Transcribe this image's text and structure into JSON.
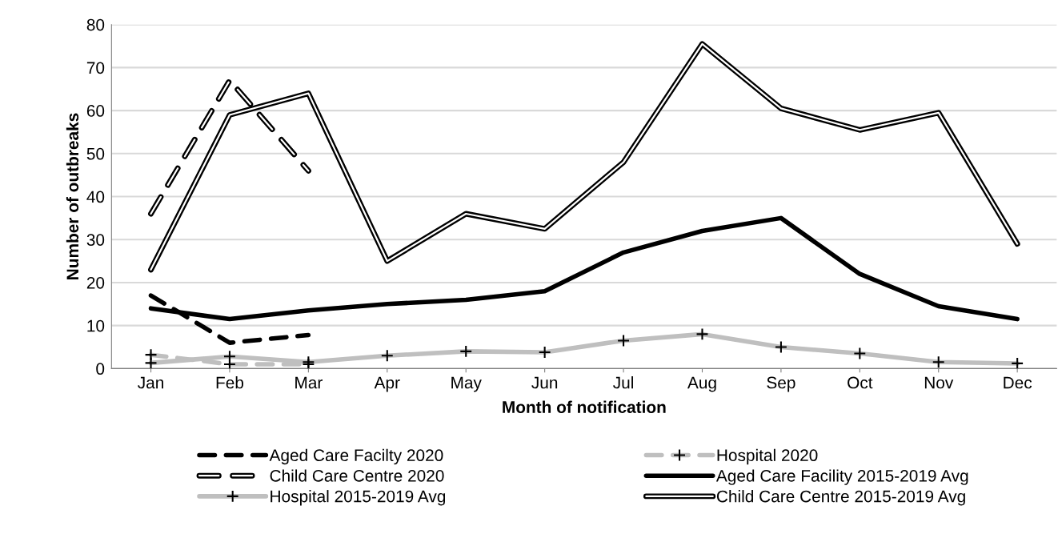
{
  "chart_data": {
    "type": "line",
    "xlabel": "Month of notification",
    "ylabel": "Number of outbreaks",
    "categories": [
      "Jan",
      "Feb",
      "Mar",
      "Apr",
      "May",
      "Jun",
      "Jul",
      "Aug",
      "Sep",
      "Oct",
      "Nov",
      "Dec"
    ],
    "ylim": [
      0,
      80
    ],
    "yticks": [
      0,
      10,
      20,
      30,
      40,
      50,
      60,
      70,
      80
    ],
    "grid": "y",
    "legend": "bottom",
    "series": [
      {
        "name": "Aged Care Facilty 2020",
        "color": "#000000",
        "line_style": "dashed",
        "marker": "none",
        "values": [
          17,
          6,
          7.8,
          null,
          null,
          null,
          null,
          null,
          null,
          null,
          null,
          null
        ]
      },
      {
        "name": "Hospital 2020",
        "color": "#bfbfbf",
        "line_style": "dashed",
        "marker": "cross",
        "values": [
          3.2,
          1,
          1,
          null,
          null,
          null,
          null,
          null,
          null,
          null,
          null,
          null
        ]
      },
      {
        "name": "Child Care Centre 2020",
        "color": "#000000",
        "line_style": "dashed",
        "marker": "none",
        "values": [
          36,
          67,
          46,
          null,
          null,
          null,
          null,
          null,
          null,
          null,
          null,
          null
        ]
      },
      {
        "name": "Aged Care Facility 2015-2019 Avg",
        "color": "#000000",
        "line_style": "solid",
        "marker": "none",
        "values": [
          14,
          11.5,
          13.5,
          15,
          16,
          18,
          27,
          32,
          35,
          22,
          14.5,
          11.5
        ]
      },
      {
        "name": "Hospital 2015-2019 Avg",
        "color": "#bfbfbf",
        "line_style": "solid",
        "marker": "cross",
        "values": [
          1.3,
          2.8,
          1.5,
          3,
          4,
          3.8,
          6.5,
          8,
          5,
          3.5,
          1.5,
          1.2
        ]
      },
      {
        "name": "Child Care Centre 2015-2019 Avg",
        "color": "#000000",
        "line_style": "solid",
        "marker": "none",
        "values": [
          23,
          59,
          64,
          25,
          36,
          32.5,
          48,
          75.5,
          60.5,
          55.5,
          59.5,
          29
        ]
      }
    ]
  }
}
